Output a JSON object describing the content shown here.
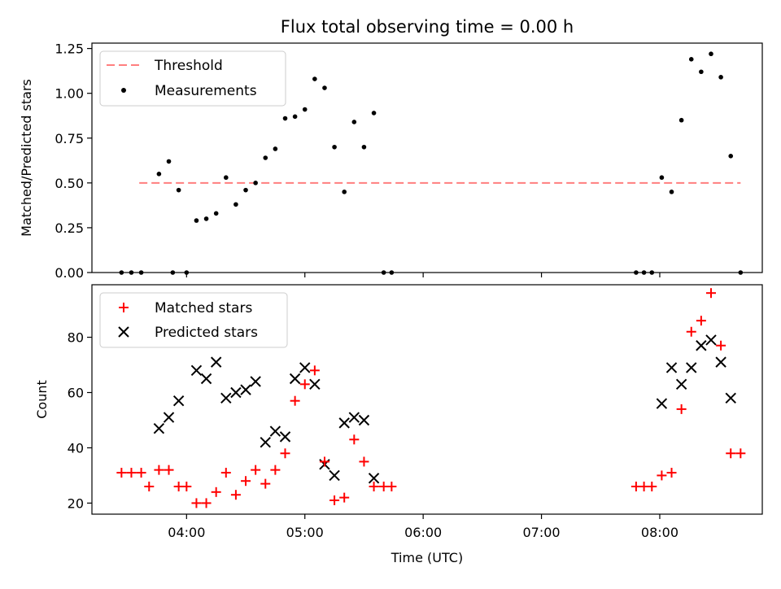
{
  "title": "Flux total observing time = 0.00 h",
  "chart_data": [
    {
      "type": "scatter",
      "ylabel": "Matched/Predicted stars",
      "xlabel": "",
      "ylim": [
        0,
        1.28
      ],
      "yticks": [
        0.0,
        0.25,
        0.5,
        0.75,
        1.0,
        1.25
      ],
      "ytick_labels": [
        "0.00",
        "0.25",
        "0.50",
        "0.75",
        "1.00",
        "1.25"
      ],
      "legend": {
        "position": "top-left",
        "entries": [
          "Threshold",
          "Measurements"
        ]
      },
      "threshold": {
        "name": "Threshold",
        "x": [
          "03:36",
          "08:41"
        ],
        "y": 0.5,
        "color": "#ff7f7f"
      },
      "series": [
        {
          "name": "Measurements",
          "color": "#000000",
          "points": [
            [
              "03:27",
              0.0
            ],
            [
              "03:32",
              0.0
            ],
            [
              "03:37",
              0.0
            ],
            [
              "03:46",
              0.55
            ],
            [
              "03:51",
              0.62
            ],
            [
              "03:53",
              0.0
            ],
            [
              "03:56",
              0.46
            ],
            [
              "04:00",
              0.0
            ],
            [
              "04:05",
              0.29
            ],
            [
              "04:10",
              0.3
            ],
            [
              "04:15",
              0.33
            ],
            [
              "04:20",
              0.53
            ],
            [
              "04:25",
              0.38
            ],
            [
              "04:30",
              0.46
            ],
            [
              "04:35",
              0.5
            ],
            [
              "04:40",
              0.64
            ],
            [
              "04:45",
              0.69
            ],
            [
              "04:50",
              0.86
            ],
            [
              "04:55",
              0.87
            ],
            [
              "05:00",
              0.91
            ],
            [
              "05:05",
              1.08
            ],
            [
              "05:10",
              1.03
            ],
            [
              "05:15",
              0.7
            ],
            [
              "05:20",
              0.45
            ],
            [
              "05:25",
              0.84
            ],
            [
              "05:30",
              0.7
            ],
            [
              "05:35",
              0.89
            ],
            [
              "05:40",
              0.0
            ],
            [
              "05:44",
              0.0
            ],
            [
              "07:48",
              0.0
            ],
            [
              "07:52",
              0.0
            ],
            [
              "07:56",
              0.0
            ],
            [
              "08:01",
              0.53
            ],
            [
              "08:06",
              0.45
            ],
            [
              "08:11",
              0.85
            ],
            [
              "08:16",
              1.19
            ],
            [
              "08:21",
              1.12
            ],
            [
              "08:26",
              1.22
            ],
            [
              "08:31",
              1.09
            ],
            [
              "08:36",
              0.65
            ],
            [
              "08:41",
              0.0
            ]
          ]
        }
      ]
    },
    {
      "type": "scatter",
      "ylabel": "Count",
      "xlabel": "Time (UTC)",
      "ylim": [
        16,
        99
      ],
      "yticks": [
        20,
        40,
        60,
        80
      ],
      "ytick_labels": [
        "20",
        "40",
        "60",
        "80"
      ],
      "xticks": [
        "04:00",
        "05:00",
        "06:00",
        "07:00",
        "08:00"
      ],
      "xtick_labels": [
        "04:00",
        "05:00",
        "06:00",
        "07:00",
        "08:00"
      ],
      "xlim": [
        "03:12",
        "08:52"
      ],
      "legend": {
        "position": "top-left",
        "entries": [
          "Matched stars",
          "Predicted stars"
        ]
      },
      "series": [
        {
          "name": "Matched stars",
          "marker": "plus",
          "color": "#ff0000",
          "points": [
            [
              "03:27",
              31
            ],
            [
              "03:32",
              31
            ],
            [
              "03:37",
              31
            ],
            [
              "03:41",
              26
            ],
            [
              "03:46",
              32
            ],
            [
              "03:51",
              32
            ],
            [
              "03:56",
              26
            ],
            [
              "04:00",
              26
            ],
            [
              "04:05",
              20
            ],
            [
              "04:10",
              20
            ],
            [
              "04:15",
              24
            ],
            [
              "04:20",
              31
            ],
            [
              "04:25",
              23
            ],
            [
              "04:30",
              28
            ],
            [
              "04:35",
              32
            ],
            [
              "04:40",
              27
            ],
            [
              "04:45",
              32
            ],
            [
              "04:50",
              38
            ],
            [
              "04:55",
              57
            ],
            [
              "05:00",
              63
            ],
            [
              "05:05",
              68
            ],
            [
              "05:10",
              35
            ],
            [
              "05:15",
              21
            ],
            [
              "05:20",
              22
            ],
            [
              "05:25",
              43
            ],
            [
              "05:30",
              35
            ],
            [
              "05:35",
              26
            ],
            [
              "05:40",
              26
            ],
            [
              "05:44",
              26
            ],
            [
              "07:48",
              26
            ],
            [
              "07:52",
              26
            ],
            [
              "07:56",
              26
            ],
            [
              "08:01",
              30
            ],
            [
              "08:06",
              31
            ],
            [
              "08:11",
              54
            ],
            [
              "08:16",
              82
            ],
            [
              "08:21",
              86
            ],
            [
              "08:26",
              96
            ],
            [
              "08:31",
              77
            ],
            [
              "08:36",
              38
            ],
            [
              "08:41",
              38
            ]
          ]
        },
        {
          "name": "Predicted stars",
          "marker": "x",
          "color": "#000000",
          "points": [
            [
              "03:46",
              47
            ],
            [
              "03:51",
              51
            ],
            [
              "03:56",
              57
            ],
            [
              "04:05",
              68
            ],
            [
              "04:10",
              65
            ],
            [
              "04:15",
              71
            ],
            [
              "04:20",
              58
            ],
            [
              "04:25",
              60
            ],
            [
              "04:30",
              61
            ],
            [
              "04:35",
              64
            ],
            [
              "04:40",
              42
            ],
            [
              "04:45",
              46
            ],
            [
              "04:50",
              44
            ],
            [
              "04:55",
              65
            ],
            [
              "05:00",
              69
            ],
            [
              "05:05",
              63
            ],
            [
              "05:10",
              34
            ],
            [
              "05:15",
              30
            ],
            [
              "05:20",
              49
            ],
            [
              "05:25",
              51
            ],
            [
              "05:30",
              50
            ],
            [
              "05:35",
              29
            ],
            [
              "08:01",
              56
            ],
            [
              "08:06",
              69
            ],
            [
              "08:11",
              63
            ],
            [
              "08:16",
              69
            ],
            [
              "08:21",
              77
            ],
            [
              "08:26",
              79
            ],
            [
              "08:31",
              71
            ],
            [
              "08:36",
              58
            ]
          ]
        }
      ]
    }
  ]
}
